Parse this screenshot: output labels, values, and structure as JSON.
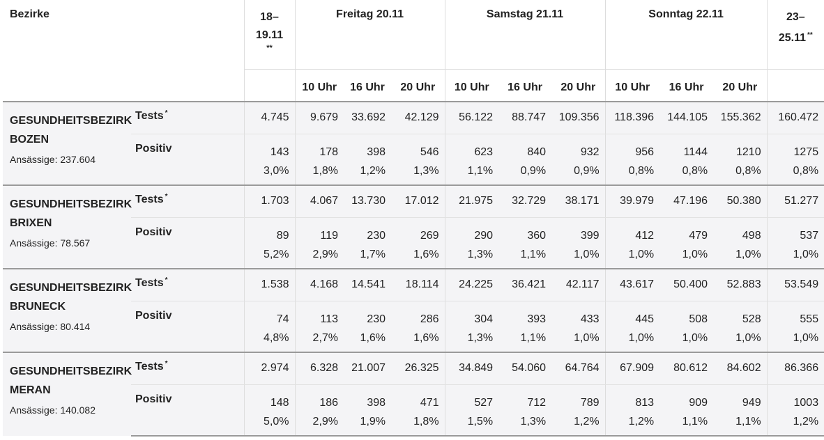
{
  "header": {
    "bezirke": "Bezirke",
    "col_1819": "18–19.11",
    "col_1819_line1": "18–",
    "col_1819_line2": "19.11",
    "col_1819_sup": "**",
    "freitag": "Freitag 20.11",
    "samstag": "Samstag 21.11",
    "sonntag": "Sonntag 22.11",
    "col_2325_line1": "23–",
    "col_2325_line2": "25.11",
    "col_2325_sup": "**",
    "hour_10": "10 Uhr",
    "hour_16": "16 Uhr",
    "hour_20": "20 Uhr"
  },
  "labels": {
    "tests": "Tests",
    "tests_sup": "*",
    "positiv": "Positiv"
  },
  "districts": [
    {
      "name_line1": "GESUNDHEITSBEZIRK",
      "name_line2": "BOZEN",
      "population": "Ansässige: 237.604",
      "tests": [
        "4.745",
        "9.679",
        "33.692",
        "42.129",
        "56.122",
        "88.747",
        "109.356",
        "118.396",
        "144.105",
        "155.362",
        "160.472"
      ],
      "positive": [
        "143",
        "178",
        "398",
        "546",
        "623",
        "840",
        "932",
        "956",
        "1144",
        "1210",
        "1275"
      ],
      "percent": [
        "3,0%",
        "1,8%",
        "1,2%",
        "1,3%",
        "1,1%",
        "0,9%",
        "0,9%",
        "0,8%",
        "0,8%",
        "0,8%",
        "0,8%"
      ]
    },
    {
      "name_line1": "GESUNDHEITSBEZIRK",
      "name_line2": "BRIXEN",
      "population": "Ansässige: 78.567",
      "tests": [
        "1.703",
        "4.067",
        "13.730",
        "17.012",
        "21.975",
        "32.729",
        "38.171",
        "39.979",
        "47.196",
        "50.380",
        "51.277"
      ],
      "positive": [
        "89",
        "119",
        "230",
        "269",
        "290",
        "360",
        "399",
        "412",
        "479",
        "498",
        "537"
      ],
      "percent": [
        "5,2%",
        "2,9%",
        "1,7%",
        "1,6%",
        "1,3%",
        "1,1%",
        "1,0%",
        "1,0%",
        "1,0%",
        "1,0%",
        "1,0%"
      ]
    },
    {
      "name_line1": "GESUNDHEITSBEZIRK",
      "name_line2": "BRUNECK",
      "population": "Ansässige: 80.414",
      "tests": [
        "1.538",
        "4.168",
        "14.541",
        "18.114",
        "24.225",
        "36.421",
        "42.117",
        "43.617",
        "50.400",
        "52.883",
        "53.549"
      ],
      "positive": [
        "74",
        "113",
        "230",
        "286",
        "304",
        "393",
        "433",
        "445",
        "508",
        "528",
        "555"
      ],
      "percent": [
        "4,8%",
        "2,7%",
        "1,6%",
        "1,6%",
        "1,3%",
        "1,1%",
        "1,0%",
        "1,0%",
        "1,0%",
        "1,0%",
        "1,0%"
      ]
    },
    {
      "name_line1": "GESUNDHEITSBEZIRK",
      "name_line2": "MERAN",
      "population": "Ansässige: 140.082",
      "tests": [
        "2.974",
        "6.328",
        "21.007",
        "26.325",
        "34.849",
        "54.060",
        "64.764",
        "67.909",
        "80.612",
        "84.602",
        "86.366"
      ],
      "positive": [
        "148",
        "186",
        "398",
        "471",
        "527",
        "712",
        "789",
        "813",
        "909",
        "949",
        "1003"
      ],
      "percent": [
        "5,0%",
        "2,9%",
        "1,9%",
        "1,8%",
        "1,5%",
        "1,3%",
        "1,2%",
        "1,2%",
        "1,1%",
        "1,1%",
        "1,2%"
      ]
    }
  ]
}
